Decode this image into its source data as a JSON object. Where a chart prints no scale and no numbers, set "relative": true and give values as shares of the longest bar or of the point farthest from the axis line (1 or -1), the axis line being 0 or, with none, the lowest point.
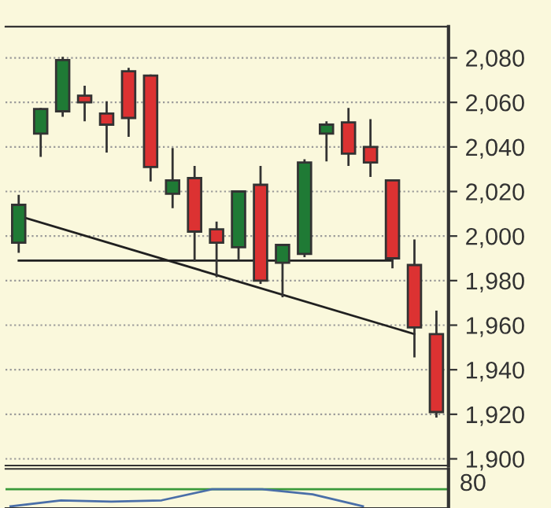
{
  "chart_data": [
    {
      "type": "candlestick",
      "categories": [
        null,
        null,
        null,
        null,
        null,
        null,
        null,
        null,
        null,
        null,
        null,
        null,
        null,
        null,
        null,
        null,
        null,
        null,
        null,
        null
      ],
      "ohlc": [
        [
          1997,
          2018,
          1993,
          2014
        ],
        [
          2046,
          2057,
          2036,
          2057
        ],
        [
          2056,
          2080,
          2054,
          2079
        ],
        [
          2063,
          2067,
          2052,
          2060
        ],
        [
          2055,
          2060,
          2038,
          2050
        ],
        [
          2074,
          2075,
          2045,
          2053
        ],
        [
          2072,
          2072,
          2025,
          2031
        ],
        [
          2019,
          2039,
          2013,
          2025
        ],
        [
          2026,
          2031,
          1989,
          2002
        ],
        [
          2003,
          2006,
          1982,
          1997
        ],
        [
          1995,
          2020,
          1990,
          2020
        ],
        [
          2023,
          2031,
          1979,
          1980
        ],
        [
          1988,
          1996,
          1973,
          1996
        ],
        [
          1992,
          2034,
          1991,
          2033
        ],
        [
          2046,
          2051,
          2034,
          2050
        ],
        [
          2051,
          2057,
          2032,
          2037
        ],
        [
          2040,
          2052,
          2027,
          2033
        ],
        [
          2025,
          2025,
          1986,
          1990
        ],
        [
          1987,
          1998,
          1946,
          1959
        ],
        [
          1956,
          1966,
          1919,
          1921
        ]
      ],
      "colors": [
        "#1f7a35",
        "#1f7a35",
        "#1f7a35",
        "#dc3232",
        "#dc3232",
        "#dc3232",
        "#dc3232",
        "#1f7a35",
        "#dc3232",
        "#dc3232",
        "#1f7a35",
        "#dc3232",
        "#1f7a35",
        "#1f7a35",
        "#1f7a35",
        "#dc3232",
        "#dc3232",
        "#dc3232",
        "#dc3232",
        "#dc3232"
      ],
      "series": [
        {
          "type": "line",
          "color": "#202020",
          "values": [
            2009,
            null,
            null,
            null,
            null,
            null,
            null,
            null,
            null,
            null,
            null,
            null,
            null,
            null,
            null,
            null,
            null,
            null,
            1956,
            null
          ]
        },
        {
          "type": "line",
          "color": "#202020",
          "values": [
            1989,
            null,
            null,
            null,
            null,
            null,
            null,
            null,
            null,
            null,
            null,
            null,
            null,
            null,
            null,
            null,
            null,
            1989,
            null,
            null
          ]
        }
      ],
      "ylim": [
        1897,
        2094
      ],
      "yticks": [
        {
          "value": 1900,
          "label": "1,900"
        },
        {
          "value": 1920,
          "label": "1,920"
        },
        {
          "value": 1940,
          "label": "1,940"
        },
        {
          "value": 1960,
          "label": "1,960"
        },
        {
          "value": 1980,
          "label": "1,980"
        },
        {
          "value": 2000,
          "label": "2,000"
        },
        {
          "value": 2020,
          "label": "2,020"
        },
        {
          "value": 2040,
          "label": "2,040"
        },
        {
          "value": 2060,
          "label": "2,060"
        },
        {
          "value": 2080,
          "label": "2,080"
        }
      ],
      "grid": "y",
      "tick_labels": "y"
    },
    {
      "type": "line",
      "relative": true,
      "categories": [
        null,
        null,
        null,
        null,
        null,
        null,
        null,
        null
      ],
      "series": [
        {
          "color": "#4a6fa8",
          "values": [
            0,
            0.35,
            0.28,
            0.35,
            1,
            1,
            0.7,
            0
          ]
        }
      ],
      "ref_lines": [
        {
          "axis": "y",
          "value": 1,
          "color": "#3a9a3a"
        }
      ],
      "annotations": [
        "80"
      ],
      "tick_labels": false
    }
  ]
}
